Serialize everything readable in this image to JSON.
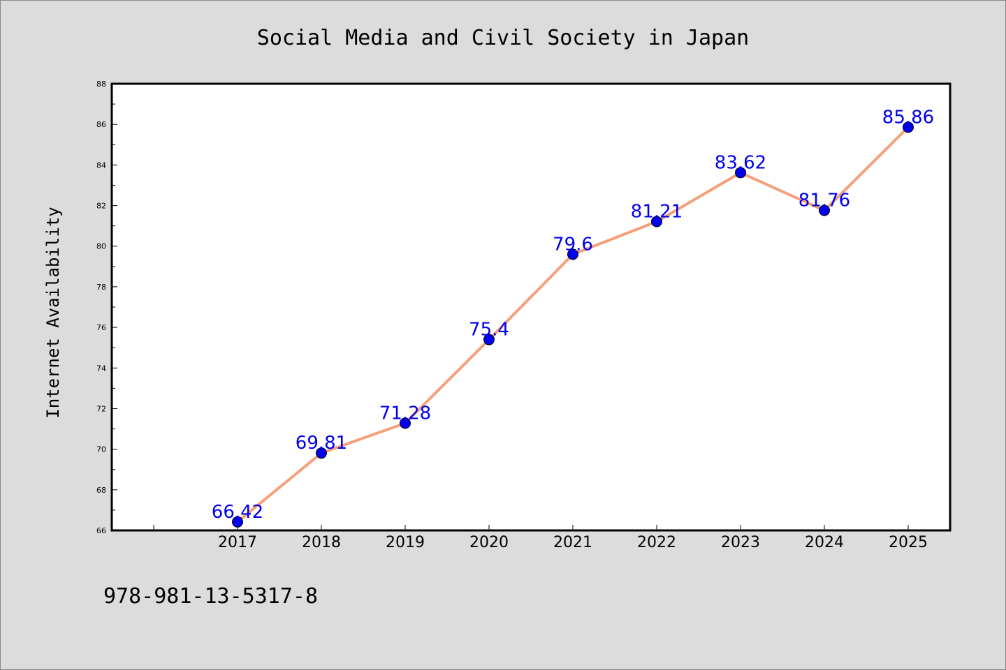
{
  "colors": {
    "background": "#dcdcdc",
    "plot_background": "#ffffff",
    "line": "#f4a07a",
    "marker": "#0000ee",
    "data_label": "#0000ee"
  },
  "footer_text": "978-981-13-5317-8",
  "chart_data": {
    "type": "line",
    "title": "Social Media and Civil Society in Japan",
    "xlabel": "",
    "ylabel": "Internet Availability",
    "categories": [
      "2017",
      "2018",
      "2019",
      "2020",
      "2021",
      "2022",
      "2023",
      "2024",
      "2025"
    ],
    "series": [
      {
        "values": [
          66.42,
          69.81,
          71.28,
          75.4,
          79.6,
          81.21,
          83.62,
          81.76,
          85.86
        ]
      }
    ],
    "ylim": [
      66,
      88
    ],
    "yticks": [
      66,
      68,
      70,
      72,
      74,
      76,
      78,
      80,
      82,
      84,
      86,
      88
    ],
    "grid": false,
    "legend": "none",
    "data_labels": [
      "66.42",
      "69.81",
      "71.28",
      "75.4",
      "79.6",
      "81.21",
      "83.62",
      "81.76",
      "85.86"
    ]
  }
}
